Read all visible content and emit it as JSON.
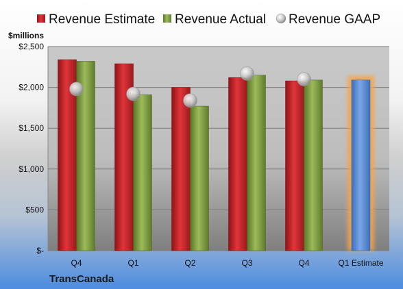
{
  "chart_data": {
    "type": "bar",
    "title": "",
    "ylabel": "$millions",
    "company": "TransCanada",
    "categories": [
      "Q4",
      "Q1",
      "Q2",
      "Q3",
      "Q4",
      "Q1 Estimate"
    ],
    "ylim": [
      0,
      2500
    ],
    "yticks": [
      0,
      500,
      1000,
      1500,
      2000,
      2500
    ],
    "ytick_labels": [
      "$-",
      "$500",
      "$1,000",
      "$1,500",
      "$2,000",
      "$2,500"
    ],
    "grid": true,
    "legend_position": "top",
    "series": [
      {
        "name": "Revenue Estimate",
        "type": "bar",
        "color": "#c0282d",
        "values": [
          2340,
          2290,
          2000,
          2120,
          2080,
          null
        ]
      },
      {
        "name": "Revenue Actual",
        "type": "bar",
        "color": "#7e9c3f",
        "values": [
          2320,
          1910,
          1770,
          2150,
          2090,
          null
        ]
      },
      {
        "name": "Revenue GAAP",
        "type": "scatter",
        "color": "#c8c8c8",
        "values": [
          1980,
          1920,
          1840,
          2170,
          2100,
          null
        ]
      },
      {
        "name": "Q1 Estimate",
        "type": "bar",
        "color": "#5b8fd6",
        "highlight": "#f5a44a",
        "values": [
          null,
          null,
          null,
          null,
          null,
          2090
        ]
      }
    ]
  }
}
